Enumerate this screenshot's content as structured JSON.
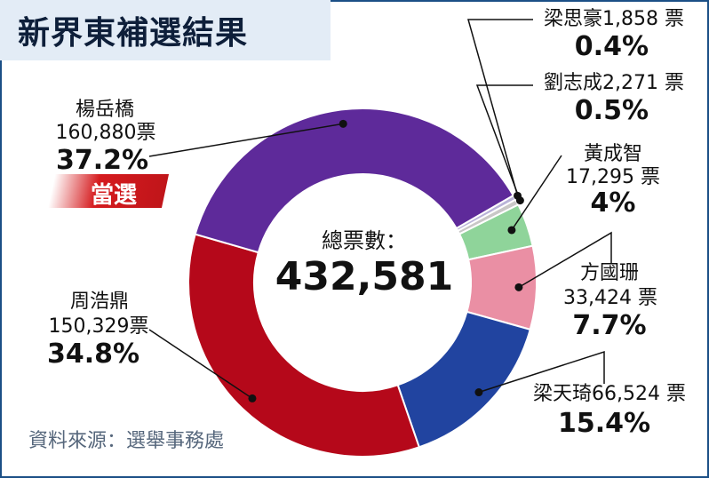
{
  "title": "新界東補選結果",
  "total_label": "總票數：",
  "total_value": "432,581",
  "winner_badge": "當選",
  "source": "資料來源：選舉事務處",
  "chart_data": {
    "type": "pie",
    "title": "新界東補選結果",
    "total": 432581,
    "slices": [
      {
        "name": "梁思豪",
        "votes": 1858,
        "votes_text": "1,858 票",
        "percent": 0.4,
        "percent_text": "0.4%",
        "color": "#b9b3d8"
      },
      {
        "name": "劉志成",
        "votes": 2271,
        "votes_text": "2,271 票",
        "percent": 0.5,
        "percent_text": "0.5%",
        "color": "#c9c7c7"
      },
      {
        "name": "黃成智",
        "votes": 17295,
        "votes_text": "17,295 票",
        "percent": 4,
        "percent_text": "4%",
        "color": "#8fd49a"
      },
      {
        "name": "方國珊",
        "votes": 33424,
        "votes_text": "33,424 票",
        "percent": 7.7,
        "percent_text": "7.7%",
        "color": "#ea8fa4"
      },
      {
        "name": "梁天琦",
        "votes": 66524,
        "votes_text": "66,524 票",
        "percent": 15.4,
        "percent_text": "15.4%",
        "color": "#2144a0"
      },
      {
        "name": "周浩鼎",
        "votes": 150329,
        "votes_text": "150,329票",
        "percent": 34.8,
        "percent_text": "34.8%",
        "color": "#b5081a"
      },
      {
        "name": "楊岳橋",
        "votes": 160880,
        "votes_text": "160,880票",
        "percent": 37.2,
        "percent_text": "37.2%",
        "color": "#5e2a9a"
      }
    ]
  }
}
